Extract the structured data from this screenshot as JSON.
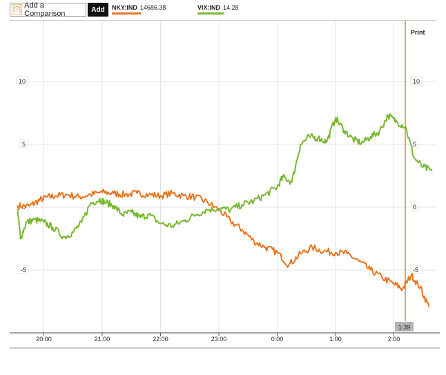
{
  "toolbar": {
    "compare_icon": "[?]",
    "compare_label": "Add a Comparison",
    "add_label": "Add"
  },
  "legend": [
    {
      "name": "NKY:IND",
      "value": "14686.38",
      "color": "#e8741e"
    },
    {
      "name": "VIX:IND",
      "value": "14.28",
      "color": "#77b82f"
    }
  ],
  "print_label": "Print",
  "cursor_label": "1:39",
  "chart_data": {
    "type": "line",
    "x_ticks": [
      "20:00",
      "21:00",
      "22:00",
      "23:00",
      "0:00",
      "1:00",
      "2:00"
    ],
    "y_ticks": [
      10,
      5,
      0,
      -5
    ],
    "ylim": [
      -10.5,
      14.5
    ],
    "grid": true,
    "series": [
      {
        "name": "NKY:IND",
        "color": "#e8741e",
        "points": [
          [
            19.55,
            0.1
          ],
          [
            19.75,
            0.1
          ],
          [
            19.9,
            0.5
          ],
          [
            20.05,
            0.8
          ],
          [
            20.2,
            0.9
          ],
          [
            20.4,
            1.0
          ],
          [
            20.6,
            0.8
          ],
          [
            20.8,
            1.0
          ],
          [
            21.0,
            1.2
          ],
          [
            21.2,
            1.1
          ],
          [
            21.4,
            1.0
          ],
          [
            21.6,
            1.1
          ],
          [
            21.8,
            1.0
          ],
          [
            22.0,
            0.9
          ],
          [
            22.2,
            1.1
          ],
          [
            22.4,
            0.9
          ],
          [
            22.6,
            0.8
          ],
          [
            22.8,
            0.4
          ],
          [
            23.0,
            -0.2
          ],
          [
            23.2,
            -1.1
          ],
          [
            23.4,
            -1.8
          ],
          [
            23.6,
            -2.7
          ],
          [
            23.8,
            -3.2
          ],
          [
            24.0,
            -3.6
          ],
          [
            24.2,
            -4.6
          ],
          [
            24.4,
            -3.7
          ],
          [
            24.6,
            -3.2
          ],
          [
            24.8,
            -3.5
          ],
          [
            25.0,
            -3.6
          ],
          [
            25.2,
            -3.7
          ],
          [
            25.4,
            -4.3
          ],
          [
            25.6,
            -5.0
          ],
          [
            25.8,
            -5.6
          ],
          [
            26.0,
            -6.1
          ],
          [
            26.15,
            -6.5
          ],
          [
            26.3,
            -5.4
          ],
          [
            26.45,
            -6.4
          ],
          [
            26.6,
            -7.9
          ]
        ]
      },
      {
        "name": "VIX:IND",
        "color": "#77b82f",
        "points": [
          [
            19.55,
            -0.2
          ],
          [
            19.6,
            -2.5
          ],
          [
            19.7,
            -1.2
          ],
          [
            19.85,
            -1.0
          ],
          [
            20.0,
            -1.2
          ],
          [
            20.15,
            -1.6
          ],
          [
            20.35,
            -2.4
          ],
          [
            20.5,
            -2.0
          ],
          [
            20.65,
            -1.2
          ],
          [
            20.8,
            0.3
          ],
          [
            20.95,
            0.6
          ],
          [
            21.05,
            0.4
          ],
          [
            21.2,
            0.1
          ],
          [
            21.35,
            -0.6
          ],
          [
            21.5,
            -0.4
          ],
          [
            21.65,
            -0.8
          ],
          [
            21.8,
            -0.6
          ],
          [
            22.0,
            -1.3
          ],
          [
            22.2,
            -1.5
          ],
          [
            22.4,
            -1.1
          ],
          [
            22.6,
            -0.6
          ],
          [
            22.8,
            -0.2
          ],
          [
            23.0,
            -0.1
          ],
          [
            23.2,
            -0.2
          ],
          [
            23.4,
            0.2
          ],
          [
            23.6,
            0.5
          ],
          [
            23.8,
            1.0
          ],
          [
            24.0,
            1.6
          ],
          [
            24.1,
            2.4
          ],
          [
            24.25,
            2.0
          ],
          [
            24.4,
            5.0
          ],
          [
            24.55,
            5.6
          ],
          [
            24.7,
            5.5
          ],
          [
            24.85,
            5.2
          ],
          [
            25.0,
            7.1
          ],
          [
            25.15,
            6.1
          ],
          [
            25.3,
            5.4
          ],
          [
            25.45,
            5.1
          ],
          [
            25.6,
            5.6
          ],
          [
            25.75,
            6.0
          ],
          [
            25.9,
            7.3
          ],
          [
            26.05,
            6.8
          ],
          [
            26.2,
            6.4
          ],
          [
            26.35,
            3.9
          ],
          [
            26.5,
            3.2
          ],
          [
            26.65,
            2.9
          ]
        ]
      }
    ]
  }
}
